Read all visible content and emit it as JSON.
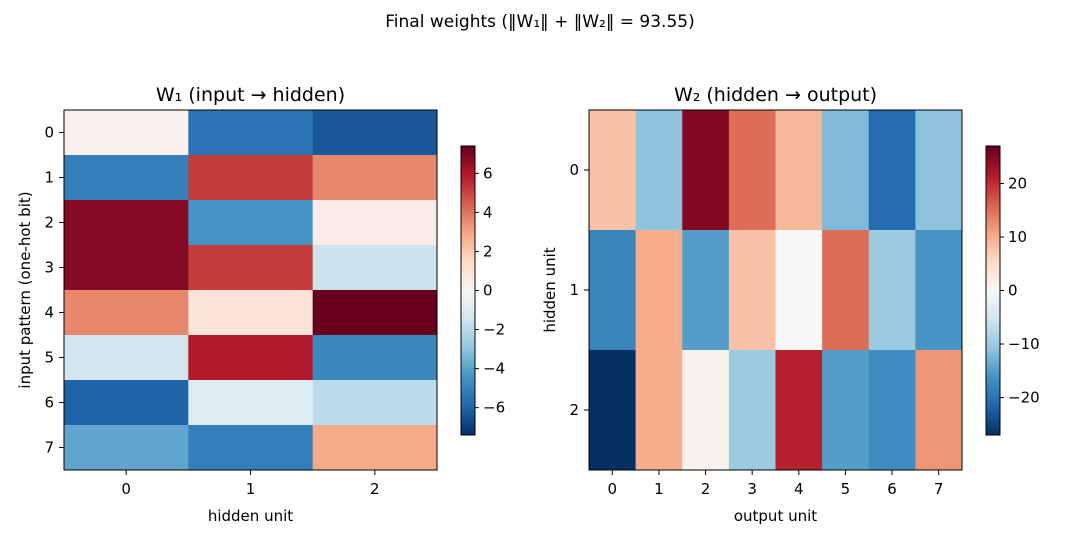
{
  "figure": {
    "suptitle": "Final weights  (‖W₁‖ + ‖W₂‖ = 93.55)"
  },
  "chart_data": [
    {
      "type": "heatmap",
      "title": "W₁ (input → hidden)",
      "xlabel": "hidden unit",
      "ylabel": "input pattern (one-hot bit)",
      "x_ticks": [
        "0",
        "1",
        "2"
      ],
      "y_ticks": [
        "0",
        "1",
        "2",
        "3",
        "4",
        "5",
        "6",
        "7"
      ],
      "colormap": "RdBu_r",
      "vmin": -7.4,
      "vmax": 7.4,
      "colorbar_ticks": [
        -6,
        -4,
        -2,
        0,
        2,
        4,
        6
      ],
      "colorbar_tick_labels": [
        "−6",
        "−4",
        "−2",
        "0",
        "2",
        "4",
        "6"
      ],
      "values": [
        [
          0.3,
          -5.5,
          -6.3
        ],
        [
          -5.1,
          5.2,
          3.6
        ],
        [
          6.8,
          -4.4,
          0.6
        ],
        [
          6.8,
          5.2,
          -1.6
        ],
        [
          3.6,
          1.0,
          7.4
        ],
        [
          -1.4,
          5.9,
          -4.8
        ],
        [
          -6.0,
          -1.0,
          -2.0
        ],
        [
          -3.9,
          -5.1,
          2.8
        ]
      ]
    },
    {
      "type": "heatmap",
      "title": "W₂ (hidden → output)",
      "xlabel": "output unit",
      "ylabel": "hidden unit",
      "x_ticks": [
        "0",
        "1",
        "2",
        "3",
        "4",
        "5",
        "6",
        "7"
      ],
      "y_ticks": [
        "0",
        "1",
        "2"
      ],
      "colormap": "RdBu_r",
      "vmin": -27,
      "vmax": 27,
      "colorbar_ticks": [
        -20,
        -10,
        0,
        10,
        20
      ],
      "colorbar_tick_labels": [
        "−20",
        "−10",
        "0",
        "10",
        "20"
      ],
      "values": [
        [
          8,
          -11,
          25,
          15,
          9,
          -12,
          -21,
          -11
        ],
        [
          -18,
          10,
          -15,
          8,
          0,
          15,
          -10,
          -16
        ],
        [
          -27,
          10,
          1,
          -10,
          21,
          -15,
          -17,
          12
        ]
      ]
    }
  ]
}
